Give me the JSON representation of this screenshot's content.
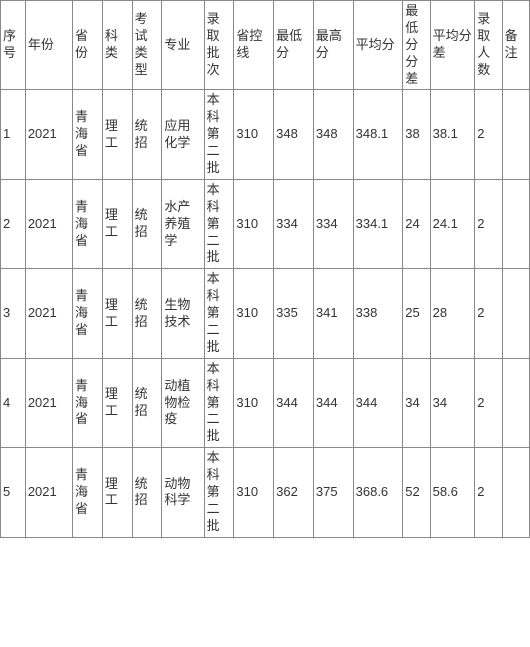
{
  "table": {
    "columns": [
      {
        "key": "idx",
        "label": "序号",
        "width_class": "col-idx"
      },
      {
        "key": "year",
        "label": "年份",
        "width_class": "col-year"
      },
      {
        "key": "province",
        "label": "省份",
        "width_class": "col-prov"
      },
      {
        "key": "subject",
        "label": "科类",
        "width_class": "col-subj"
      },
      {
        "key": "exam_type",
        "label": "考试类型",
        "width_class": "col-exam"
      },
      {
        "key": "major",
        "label": "专业",
        "width_class": "col-major"
      },
      {
        "key": "batch",
        "label": "录取批次",
        "width_class": "col-batch"
      },
      {
        "key": "ctrl_line",
        "label": "省控线",
        "width_class": "col-ctrl"
      },
      {
        "key": "min_score",
        "label": "最低分",
        "width_class": "col-min"
      },
      {
        "key": "max_score",
        "label": "最高分",
        "width_class": "col-max"
      },
      {
        "key": "avg_score",
        "label": "平均分",
        "width_class": "col-avg"
      },
      {
        "key": "min_diff",
        "label": "最低分分差",
        "width_class": "col-mindiff"
      },
      {
        "key": "avg_diff",
        "label": "平均分差",
        "width_class": "col-avgdiff"
      },
      {
        "key": "count",
        "label": "录取人数",
        "width_class": "col-count"
      },
      {
        "key": "note",
        "label": "备注",
        "width_class": "col-note"
      }
    ],
    "rows": [
      {
        "idx": "1",
        "year": "2021",
        "province": "青海省",
        "subject": "理工",
        "exam_type": "统招",
        "major": "应用化学",
        "batch": "本科第二批",
        "ctrl_line": "310",
        "min_score": "348",
        "max_score": "348",
        "avg_score": "348.1",
        "min_diff": "38",
        "avg_diff": "38.1",
        "count": "2",
        "note": ""
      },
      {
        "idx": "2",
        "year": "2021",
        "province": "青海省",
        "subject": "理工",
        "exam_type": "统招",
        "major": "水产养殖学",
        "batch": "本科第二批",
        "ctrl_line": "310",
        "min_score": "334",
        "max_score": "334",
        "avg_score": "334.1",
        "min_diff": "24",
        "avg_diff": "24.1",
        "count": "2",
        "note": ""
      },
      {
        "idx": "3",
        "year": "2021",
        "province": "青海省",
        "subject": "理工",
        "exam_type": "统招",
        "major": "生物技术",
        "batch": "本科第二批",
        "ctrl_line": "310",
        "min_score": "335",
        "max_score": "341",
        "avg_score": "338",
        "min_diff": "25",
        "avg_diff": "28",
        "count": "2",
        "note": ""
      },
      {
        "idx": "4",
        "year": "2021",
        "province": "青海省",
        "subject": "理工",
        "exam_type": "统招",
        "major": "动植物检疫",
        "batch": "本科第二批",
        "ctrl_line": "310",
        "min_score": "344",
        "max_score": "344",
        "avg_score": "344",
        "min_diff": "34",
        "avg_diff": "34",
        "count": "2",
        "note": ""
      },
      {
        "idx": "5",
        "year": "2021",
        "province": "青海省",
        "subject": "理工",
        "exam_type": "统招",
        "major": "动物科学",
        "batch": "本科第二批",
        "ctrl_line": "310",
        "min_score": "362",
        "max_score": "375",
        "avg_score": "368.6",
        "min_diff": "52",
        "avg_diff": "58.6",
        "count": "2",
        "note": ""
      }
    ],
    "border_color": "#888888",
    "text_color": "#333333",
    "background_color": "#ffffff",
    "font_size": 13
  }
}
